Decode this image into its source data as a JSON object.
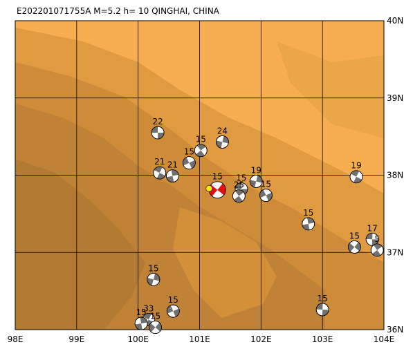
{
  "map": {
    "title": "E202201071755A M=5.2 h= 10 QINGHAI, CHINA",
    "xlim": [
      98,
      104
    ],
    "ylim": [
      36,
      40
    ],
    "xticks": [
      {
        "value": 98,
        "label": "98E"
      },
      {
        "value": 99,
        "label": "99E"
      },
      {
        "value": 100,
        "label": "100E"
      },
      {
        "value": 101,
        "label": "101E"
      },
      {
        "value": 102,
        "label": "102E"
      },
      {
        "value": 103,
        "label": "103E"
      },
      {
        "value": 104,
        "label": "104E"
      }
    ],
    "yticks": [
      {
        "value": 36,
        "label": "36N"
      },
      {
        "value": 37,
        "label": "37N"
      },
      {
        "value": 38,
        "label": "38N"
      },
      {
        "value": 39,
        "label": "39N"
      },
      {
        "value": 40,
        "label": "40N"
      }
    ],
    "events": [
      {
        "label": "22",
        "lon": 100.32,
        "lat": 38.55
      },
      {
        "label": "15",
        "lon": 101.02,
        "lat": 38.32
      },
      {
        "label": "24",
        "lon": 101.37,
        "lat": 38.43
      },
      {
        "label": "15",
        "lon": 100.83,
        "lat": 38.16
      },
      {
        "label": "21",
        "lon": 100.35,
        "lat": 38.03
      },
      {
        "label": "21",
        "lon": 100.56,
        "lat": 37.99
      },
      {
        "label": "15",
        "lon": 101.29,
        "lat": 37.81,
        "main": true
      },
      {
        "label": "15",
        "lon": 101.68,
        "lat": 37.82
      },
      {
        "label": "25",
        "lon": 101.64,
        "lat": 37.73
      },
      {
        "label": "19",
        "lon": 101.92,
        "lat": 37.92
      },
      {
        "label": "15",
        "lon": 102.08,
        "lat": 37.74
      },
      {
        "label": "19",
        "lon": 103.55,
        "lat": 37.98
      },
      {
        "label": "15",
        "lon": 102.77,
        "lat": 37.37
      },
      {
        "label": "15",
        "lon": 103.52,
        "lat": 37.07
      },
      {
        "label": "17",
        "lon": 103.81,
        "lat": 37.17
      },
      {
        "label": "5",
        "lon": 103.89,
        "lat": 37.03
      },
      {
        "label": "15",
        "lon": 100.25,
        "lat": 36.65
      },
      {
        "label": "15",
        "lon": 100.57,
        "lat": 36.24
      },
      {
        "label": "33",
        "lon": 100.17,
        "lat": 36.13
      },
      {
        "label": "15",
        "lon": 100.05,
        "lat": 36.08
      },
      {
        "label": "15",
        "lon": 100.28,
        "lat": 36.03
      },
      {
        "label": "15",
        "lon": 103.0,
        "lat": 36.26
      }
    ]
  }
}
